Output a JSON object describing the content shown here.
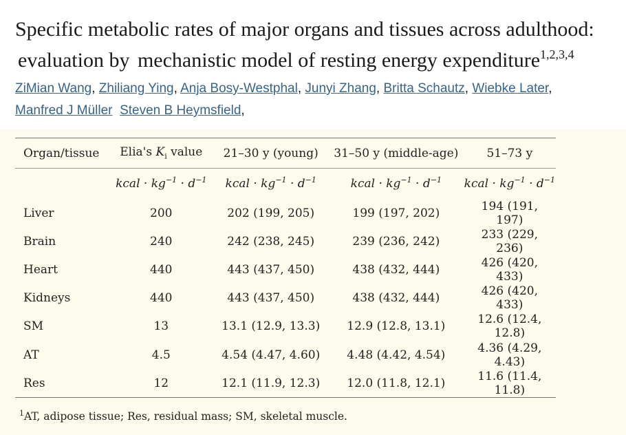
{
  "article": {
    "title_line1": "Specific metabolic rates of major organs and tissues across adulthood:",
    "title_line2_a": "evaluation by",
    "title_line2_b": "mechanistic model of resting energy expenditure",
    "title_sup": "1,2,3,4",
    "authors": [
      {
        "name": "ZiMian Wang",
        "sep": ", "
      },
      {
        "name": "Zhiliang Ying",
        "sep": ", "
      },
      {
        "name": "Anja Bosy-Westphal",
        "sep": ", "
      },
      {
        "name": "Junyi Zhang",
        "sep": ", "
      },
      {
        "name": "Britta Schautz",
        "sep": ", "
      },
      {
        "name": "Wiebke Later",
        "sep": ","
      },
      {
        "name": "Manfred J Müller",
        "sep": "  "
      },
      {
        "name": "Steven B Heymsfield",
        "sep": ","
      }
    ]
  },
  "table": {
    "headers": {
      "organ": "Organ/tissue",
      "elia_prefix": "Elia's ",
      "elia_k": "K",
      "elia_sub": "i",
      "elia_suffix": " value",
      "young": "21–30 y (young)",
      "middle": "31–50 y (middle-age)",
      "older": "51–73 y"
    },
    "units": {
      "prefix": "kcal · kg",
      "exp1": "−1",
      "mid": " · d",
      "exp2": "−1"
    },
    "rows": [
      {
        "organ": "Liver",
        "elia": "200",
        "young": "202 (199, 205)",
        "middle": "199 (197, 202)",
        "older": "194 (191, 197)"
      },
      {
        "organ": "Brain",
        "elia": "240",
        "young": "242 (238, 245)",
        "middle": "239 (236, 242)",
        "older": "233 (229, 236)"
      },
      {
        "organ": "Heart",
        "elia": "440",
        "young": "443 (437, 450)",
        "middle": "438 (432, 444)",
        "older": "426 (420, 433)"
      },
      {
        "organ": "Kidneys",
        "elia": "440",
        "young": "443 (437, 450)",
        "middle": "438 (432, 444)",
        "older": "426 (420, 433)"
      },
      {
        "organ": "SM",
        "elia": "13",
        "young": "13.1 (12.9, 13.3)",
        "middle": "12.9 (12.8, 13.1)",
        "older": "12.6 (12.4, 12.8)"
      },
      {
        "organ": "AT",
        "elia": "4.5",
        "young": "4.54 (4.47, 4.60)",
        "middle": "4.48 (4.42, 4.54)",
        "older": "4.36 (4.29, 4.43)"
      },
      {
        "organ": "Res",
        "elia": "12",
        "young": "12.1 (11.9, 12.3)",
        "middle": "12.0 (11.8, 12.1)",
        "older": "11.6 (11.4, 11.8)"
      }
    ]
  },
  "footnote": {
    "sup": "1",
    "text": "AT, adipose tissue; Res, residual mass; SM, skeletal muscle."
  },
  "colors": {
    "link": "#36648b",
    "page_bg": "#fdfbec",
    "header_bg": "#ffffff"
  }
}
